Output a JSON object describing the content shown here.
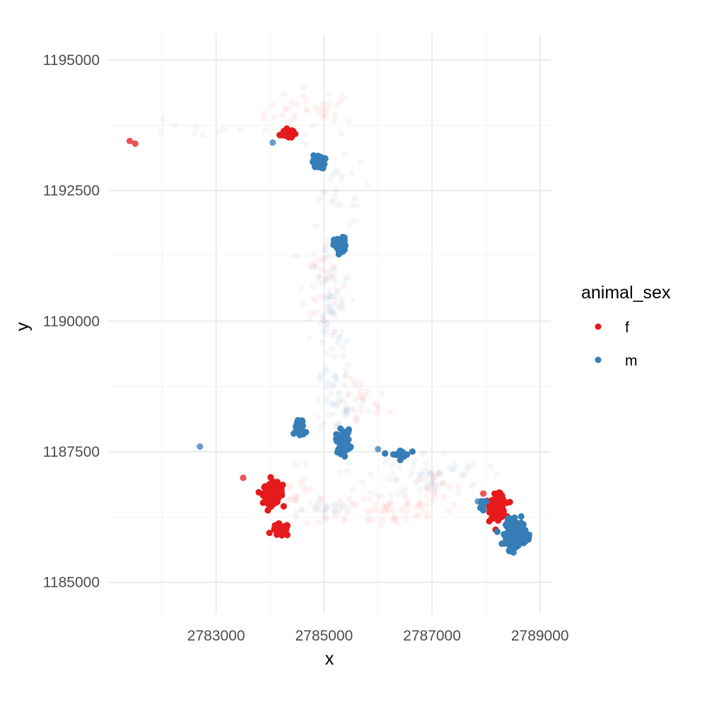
{
  "chart_data": {
    "type": "scatter",
    "title": "",
    "xlabel": "x",
    "ylabel": "y",
    "xlim": [
      2781000,
      2789200
    ],
    "ylim": [
      1184400,
      1195500
    ],
    "x_ticks": [
      2783000,
      2785000,
      2787000,
      2789000
    ],
    "x_tick_labels": [
      "2783000",
      "2785000",
      "2787000",
      "2789000"
    ],
    "x_minor_ticks": [
      2782000,
      2784000,
      2786000,
      2788000
    ],
    "y_ticks": [
      1185000,
      1187500,
      1190000,
      1192500,
      1195000
    ],
    "y_tick_labels": [
      "1185000",
      "1187500",
      "1190000",
      "1192500",
      "1195000"
    ],
    "y_minor_ticks": [
      1186250,
      1188750,
      1191250,
      1193750
    ],
    "grid": true,
    "legend": {
      "title": "animal_sex",
      "position": "right",
      "entries": [
        {
          "label": "f",
          "color": "#E41A1C"
        },
        {
          "label": "m",
          "color": "#377EB8"
        }
      ]
    },
    "series": [
      {
        "name": "f",
        "color": "#E41A1C",
        "clusters": [
          {
            "x": 2784300,
            "y": 1193600,
            "sx": 60,
            "sy": 50,
            "n": 30
          },
          {
            "x": 2784050,
            "y": 1186700,
            "sx": 90,
            "sy": 95,
            "n": 160
          },
          {
            "x": 2784200,
            "y": 1186000,
            "sx": 80,
            "sy": 60,
            "n": 35
          },
          {
            "x": 2788220,
            "y": 1186450,
            "sx": 70,
            "sy": 110,
            "n": 110
          }
        ],
        "scatter": [
          [
            2781400,
            1193450
          ],
          [
            2781500,
            1193400
          ],
          [
            2783500,
            1187000
          ],
          [
            2787950,
            1186700
          ],
          [
            2788400,
            1186150
          ]
        ],
        "faint": [
          {
            "x": 2784800,
            "y": 1194000,
            "sx": 450,
            "sy": 230,
            "n": 40
          },
          {
            "x": 2785000,
            "y": 1190700,
            "sx": 250,
            "sy": 450,
            "n": 35
          },
          {
            "x": 2785700,
            "y": 1188400,
            "sx": 250,
            "sy": 250,
            "n": 25
          },
          {
            "x": 2786000,
            "y": 1186400,
            "sx": 700,
            "sy": 180,
            "n": 60
          },
          {
            "x": 2787000,
            "y": 1186900,
            "sx": 450,
            "sy": 200,
            "n": 25
          },
          {
            "x": 2784500,
            "y": 1186700,
            "sx": 200,
            "sy": 250,
            "n": 20
          }
        ]
      },
      {
        "name": "m",
        "color": "#377EB8",
        "clusters": [
          {
            "x": 2784900,
            "y": 1193050,
            "sx": 55,
            "sy": 65,
            "n": 45
          },
          {
            "x": 2785300,
            "y": 1191450,
            "sx": 55,
            "sy": 75,
            "n": 55
          },
          {
            "x": 2784550,
            "y": 1187950,
            "sx": 50,
            "sy": 80,
            "n": 45
          },
          {
            "x": 2785350,
            "y": 1187700,
            "sx": 65,
            "sy": 110,
            "n": 55
          },
          {
            "x": 2786400,
            "y": 1187450,
            "sx": 90,
            "sy": 45,
            "n": 22
          },
          {
            "x": 2788550,
            "y": 1185950,
            "sx": 90,
            "sy": 120,
            "n": 230
          },
          {
            "x": 2787950,
            "y": 1186500,
            "sx": 45,
            "sy": 50,
            "n": 10
          }
        ],
        "scatter": [
          [
            2784050,
            1193420
          ],
          [
            2782700,
            1187600
          ],
          [
            2788700,
            1185750
          ],
          [
            2788450,
            1185700
          ],
          [
            2786000,
            1187550
          ],
          [
            2787850,
            1186550
          ]
        ],
        "faint": [
          {
            "x": 2785100,
            "y": 1190000,
            "sx": 180,
            "sy": 900,
            "n": 80
          },
          {
            "x": 2785300,
            "y": 1188500,
            "sx": 250,
            "sy": 350,
            "n": 40
          },
          {
            "x": 2786900,
            "y": 1187050,
            "sx": 550,
            "sy": 230,
            "n": 60
          },
          {
            "x": 2784900,
            "y": 1186450,
            "sx": 300,
            "sy": 60,
            "n": 20
          },
          {
            "x": 2785200,
            "y": 1192500,
            "sx": 300,
            "sy": 300,
            "n": 25
          },
          {
            "x": 2782500,
            "y": 1193600,
            "sx": 600,
            "sy": 150,
            "n": 10
          }
        ]
      }
    ]
  }
}
